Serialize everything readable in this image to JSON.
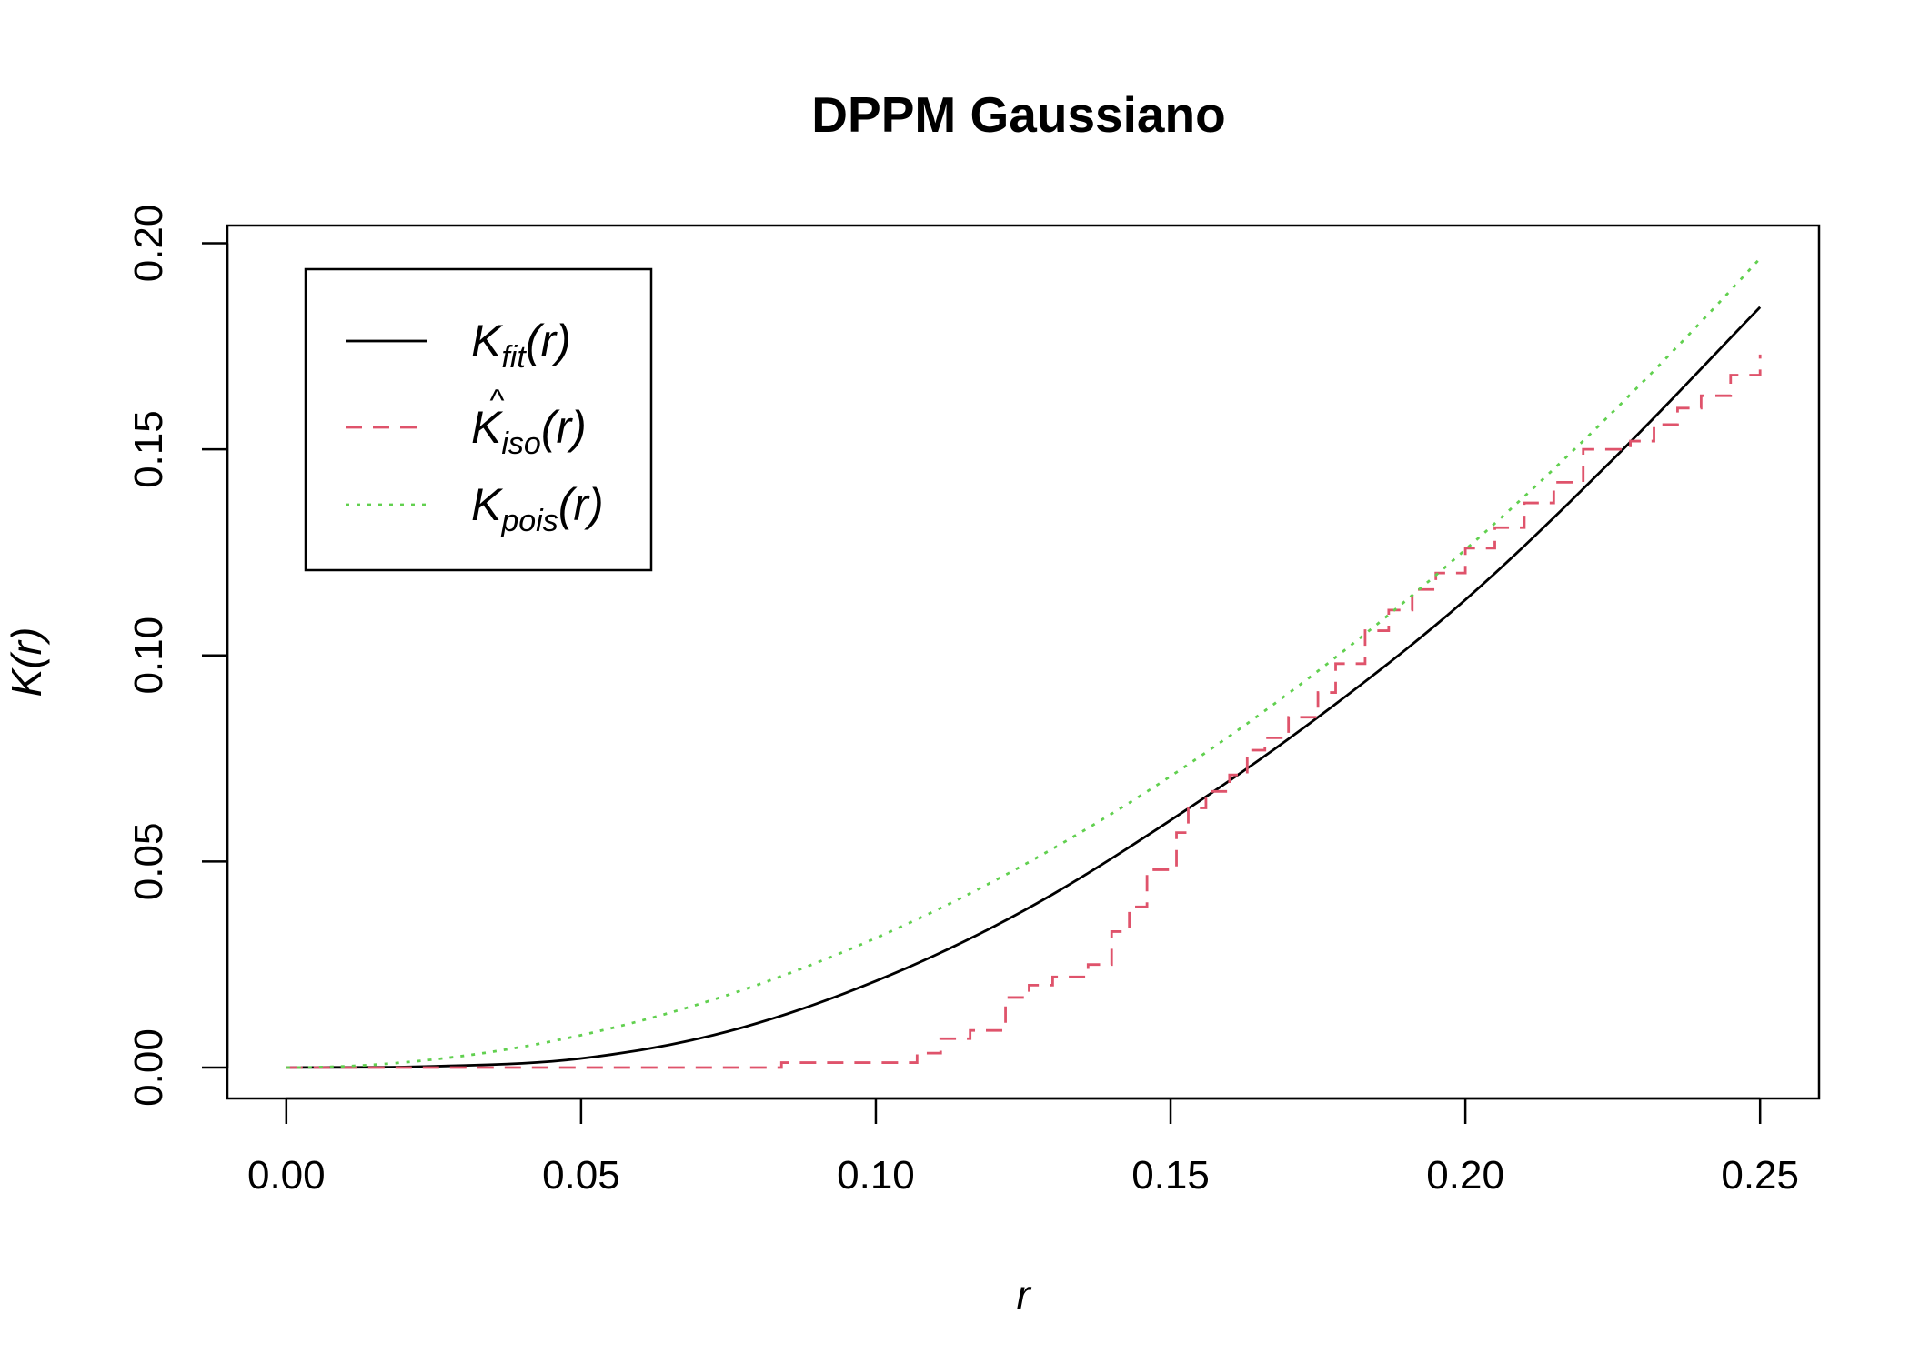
{
  "chart_data": {
    "type": "line",
    "title": "DPPM Gaussiano",
    "xlabel": "r",
    "ylabel": "K(r)",
    "xlim": [
      -0.01,
      0.26
    ],
    "ylim": [
      -0.0075,
      0.2043
    ],
    "x_ticks": [
      0.0,
      0.05,
      0.1,
      0.15,
      0.2,
      0.25
    ],
    "x_tick_labels": [
      "0.00",
      "0.05",
      "0.10",
      "0.15",
      "0.20",
      "0.25"
    ],
    "y_ticks": [
      0.0,
      0.05,
      0.1,
      0.15,
      0.2
    ],
    "y_tick_labels": [
      "0.00",
      "0.05",
      "0.10",
      "0.15",
      "0.20"
    ],
    "grid": false,
    "legend_position": "top-left",
    "series": [
      {
        "name": "K_fit(r)",
        "label_main": "K",
        "label_sub": "fit",
        "label_suffix": "(r)",
        "color": "#000000",
        "dash": "solid",
        "x": [
          0.0,
          0.025,
          0.05,
          0.075,
          0.1,
          0.125,
          0.15,
          0.175,
          0.2,
          0.225,
          0.25
        ],
        "y": [
          0.0,
          0.0003,
          0.0022,
          0.0088,
          0.021,
          0.038,
          0.06,
          0.085,
          0.1135,
          0.1475,
          0.1845
        ]
      },
      {
        "name": "K_iso(r)",
        "label_main": "K",
        "label_hat": "^",
        "label_sub": "iso",
        "label_suffix": "(r)",
        "color": "#DF536B",
        "dash": "dashed",
        "step": true,
        "x": [
          0.0,
          0.084,
          0.107,
          0.111,
          0.116,
          0.122,
          0.126,
          0.13,
          0.136,
          0.14,
          0.143,
          0.146,
          0.151,
          0.153,
          0.156,
          0.16,
          0.163,
          0.166,
          0.17,
          0.175,
          0.178,
          0.183,
          0.187,
          0.191,
          0.195,
          0.2,
          0.205,
          0.21,
          0.215,
          0.22,
          0.228,
          0.232,
          0.236,
          0.24,
          0.245,
          0.25
        ],
        "y": [
          0.0,
          0.0012,
          0.0035,
          0.007,
          0.009,
          0.017,
          0.02,
          0.022,
          0.025,
          0.033,
          0.039,
          0.048,
          0.057,
          0.063,
          0.067,
          0.071,
          0.077,
          0.08,
          0.085,
          0.091,
          0.098,
          0.106,
          0.111,
          0.116,
          0.12,
          0.126,
          0.131,
          0.137,
          0.142,
          0.15,
          0.152,
          0.156,
          0.16,
          0.163,
          0.168,
          0.173
        ]
      },
      {
        "name": "K_pois(r)",
        "label_main": "K",
        "label_sub": "pois",
        "label_suffix": "(r)",
        "color": "#61D04F",
        "dash": "dotted",
        "function": "pi*r^2",
        "x_range": [
          0.0,
          0.25
        ]
      }
    ]
  }
}
